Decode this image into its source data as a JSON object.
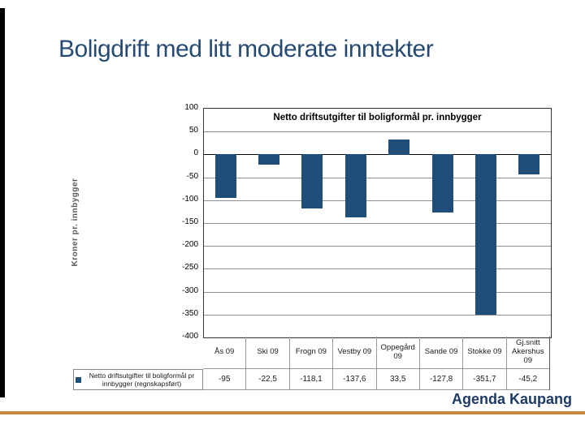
{
  "slide": {
    "title": "Boligdrift med litt moderate inntekter",
    "footer_brand": "Agenda Kaupang",
    "colors": {
      "title_blue": "#274A73",
      "bar_navy": "#1F4E79",
      "orange_rule": "#C8883C",
      "footer_blue": "#1E3A66",
      "left_bar": "#000000"
    }
  },
  "chart_data": {
    "type": "bar",
    "title": "Netto driftsutgifter til boligformål pr. innbygger",
    "ylabel": "Kroner pr. innbygger",
    "xlabel": "",
    "categories": [
      "Ås 09",
      "Ski 09",
      "Frogn 09",
      "Vestby 09",
      "Oppegård 09",
      "Sande 09",
      "Stokke 09",
      "Gj.snitt Akershus 09"
    ],
    "series": [
      {
        "name": "Netto driftsutgifter til boligformål pr innbygger (regnskapsført)",
        "values": [
          -95,
          -22.5,
          -118.1,
          -137.6,
          33.5,
          -127.8,
          -351.7,
          -45.2
        ],
        "display_values": [
          "-95",
          "-22,5",
          "-118,1",
          "-137,6",
          "33,5",
          "-127,8",
          "-351,7",
          "-45,2"
        ],
        "color": "#1F4E79"
      }
    ],
    "ylim": [
      -400,
      100
    ],
    "ytick_step": 50,
    "ytick_labels": [
      "100",
      "50",
      "0",
      "-50",
      "-100",
      "-150",
      "-200",
      "-250",
      "-300",
      "-350",
      "-400"
    ],
    "grid": true,
    "legend_position": "table-left"
  }
}
